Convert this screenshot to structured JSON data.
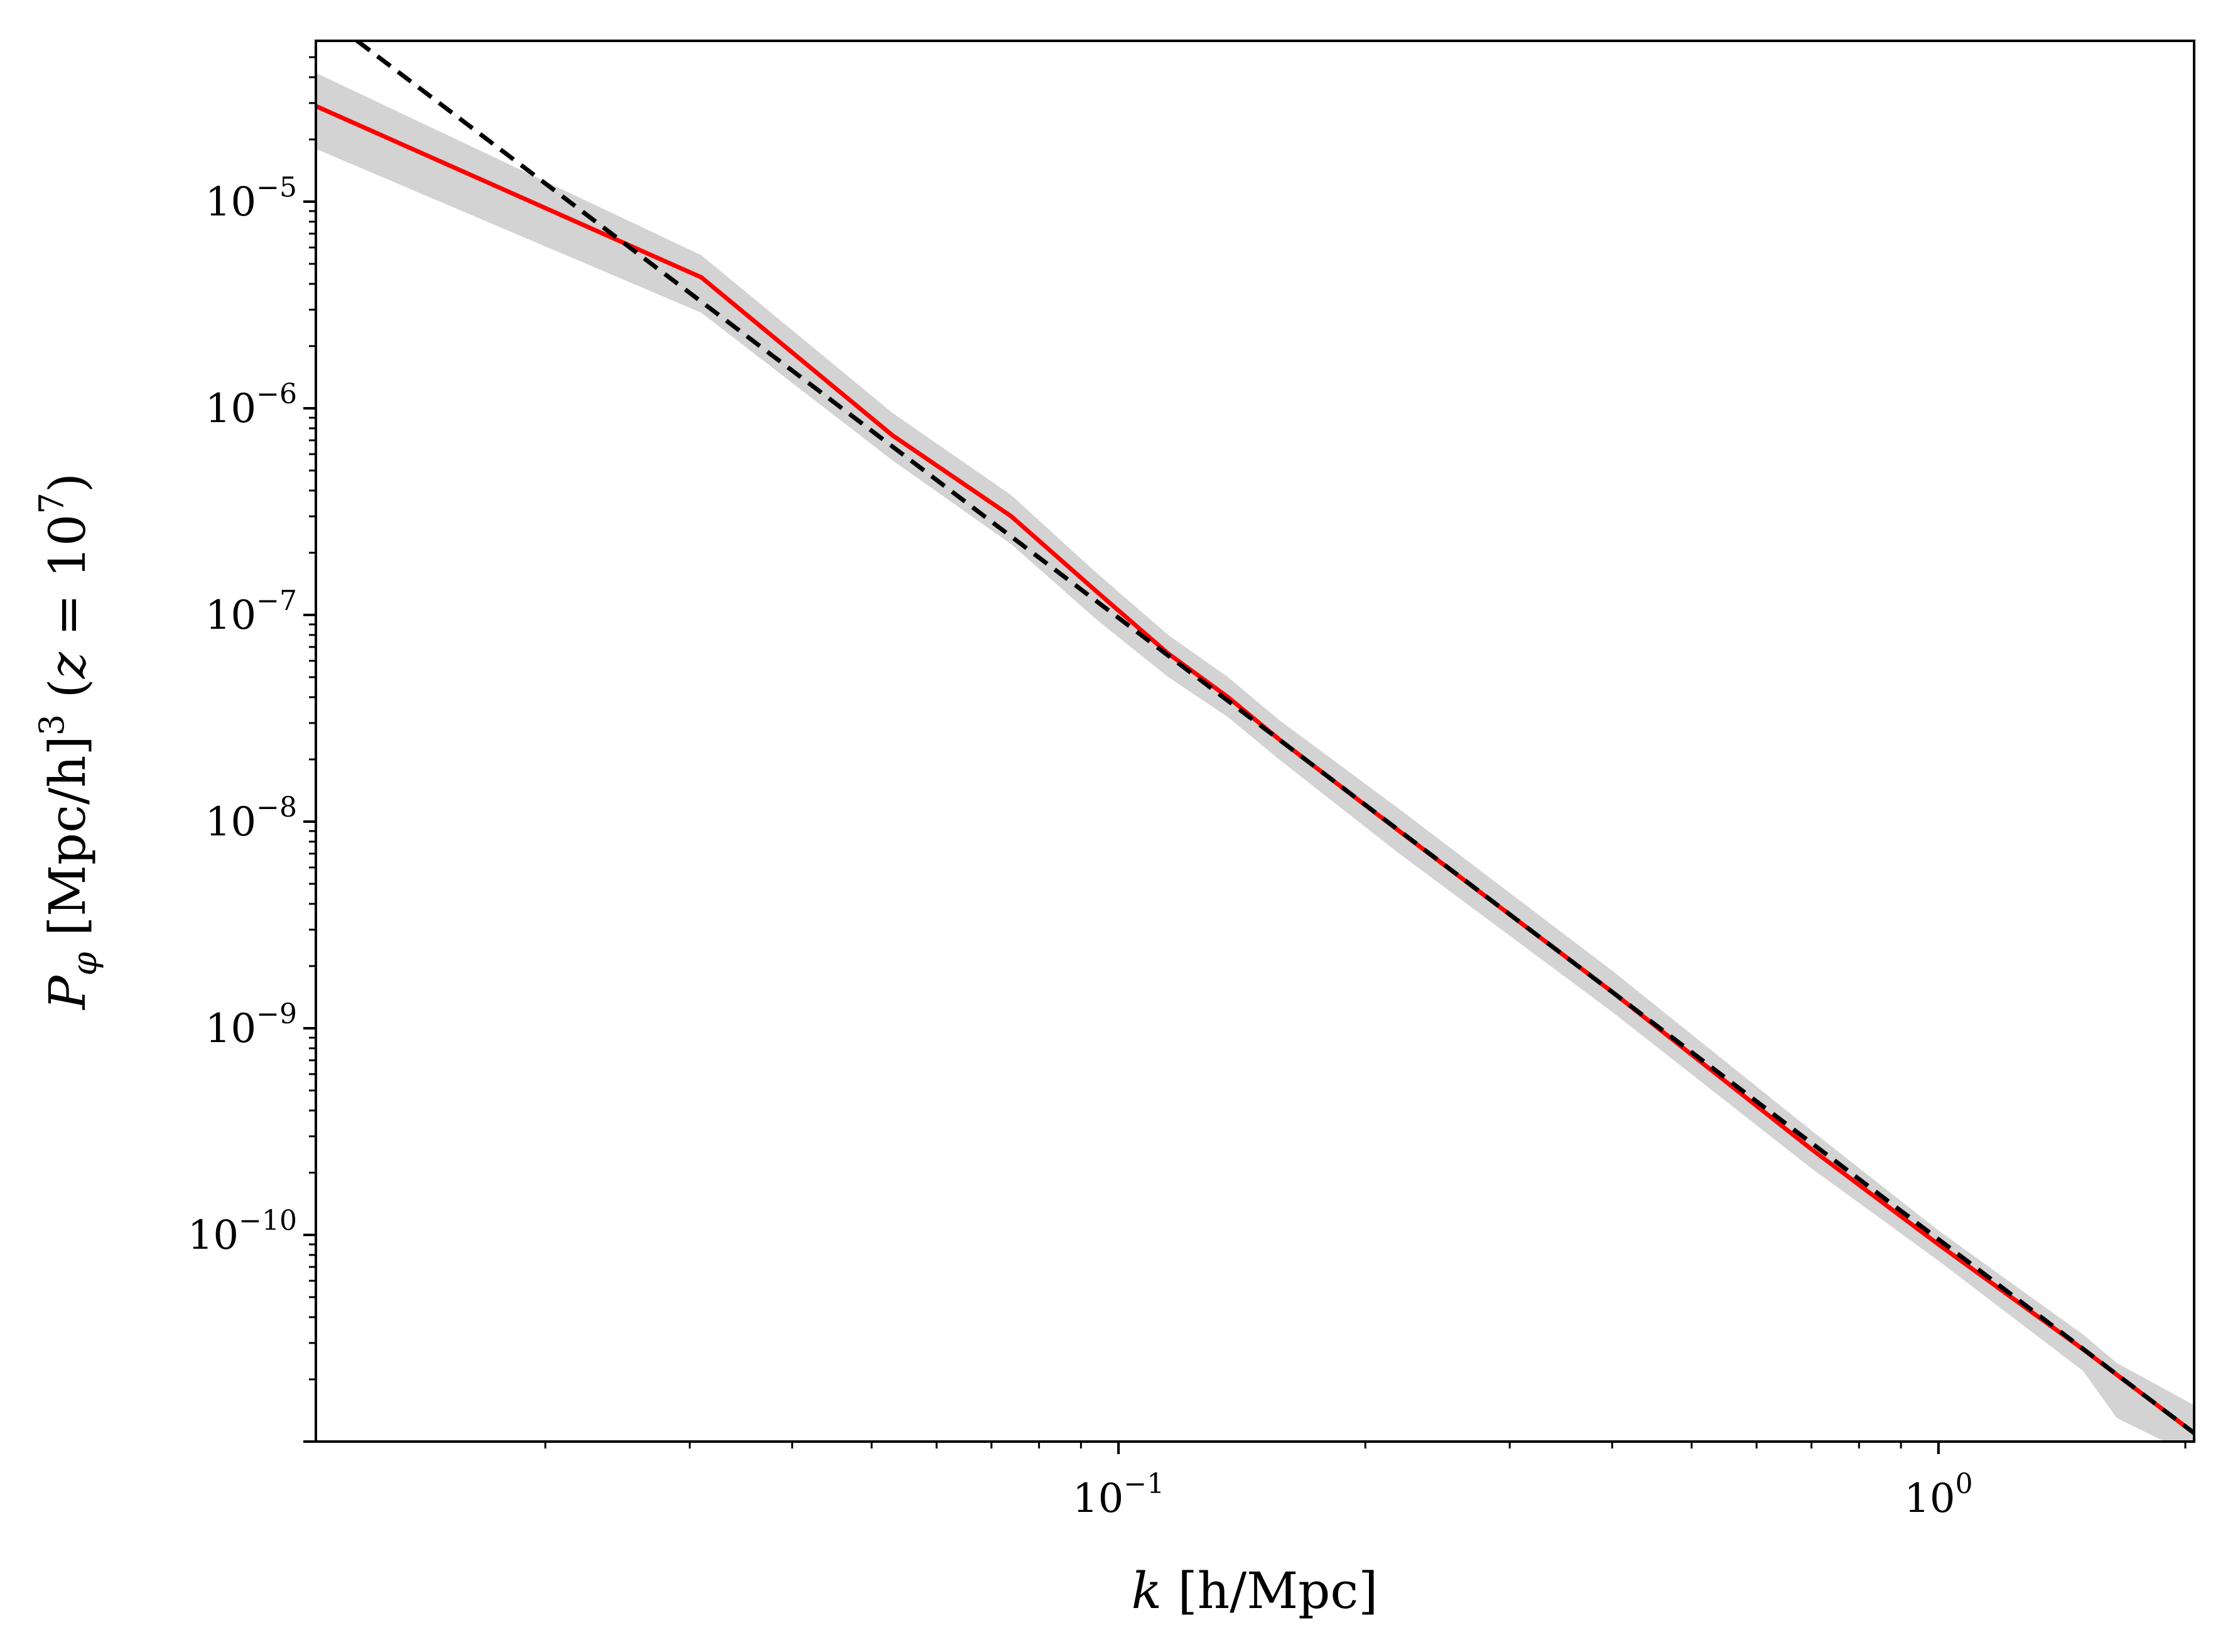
{
  "chart_data": {
    "type": "line",
    "title": "",
    "xlabel": "k [h/Mpc]",
    "ylabel": "P_φ [Mpc/h]^3 (z = 10^7)",
    "xscale": "log",
    "yscale": "log",
    "xlim": [
      0.0105,
      2.05
    ],
    "ylim": [
      1e-11,
      6e-05
    ],
    "grid": false,
    "legend": "none",
    "x_ticks": [
      {
        "value": 0.1,
        "base": "10",
        "exp": "−1"
      },
      {
        "value": 1.0,
        "base": "10",
        "exp": "0"
      }
    ],
    "y_ticks": [
      {
        "value": 1e-05,
        "base": "10",
        "exp": "−5"
      },
      {
        "value": 1e-06,
        "base": "10",
        "exp": "−6"
      },
      {
        "value": 1e-07,
        "base": "10",
        "exp": "−7"
      },
      {
        "value": 1e-08,
        "base": "10",
        "exp": "−8"
      },
      {
        "value": 1e-09,
        "base": "10",
        "exp": "−9"
      },
      {
        "value": 1e-10,
        "base": "10",
        "exp": "−10"
      }
    ],
    "series": [
      {
        "style": "solid",
        "color": "#ff0000",
        "x": [
          0.0105,
          0.031,
          0.053,
          0.074,
          0.094,
          0.115,
          0.136,
          0.157,
          0.22,
          0.4,
          0.7,
          1.0,
          1.5,
          2.05
        ],
        "y": [
          2.9e-05,
          4.3e-06,
          7.4e-07,
          3e-07,
          1.3e-07,
          6.5e-08,
          4e-08,
          2.5e-08,
          9e-09,
          1.5e-09,
          2.6e-10,
          9e-11,
          2.8e-11,
          1.1e-11
        ]
      },
      {
        "style": "dashed",
        "color": "#000000",
        "x": [
          0.0105,
          2.05
        ],
        "y": [
          8.5e-05,
          1.1e-11
        ]
      }
    ],
    "band": {
      "color": "#d3d3d3",
      "x": [
        0.0105,
        0.031,
        0.053,
        0.074,
        0.094,
        0.115,
        0.136,
        0.157,
        0.22,
        0.4,
        0.7,
        1.0,
        1.5,
        1.65,
        2.05
      ],
      "upper": [
        4.2e-05,
        5.5e-06,
        9.5e-07,
        3.8e-07,
        1.6e-07,
        8e-08,
        5e-08,
        3.1e-08,
        1.15e-08,
        1.9e-09,
        3.2e-10,
        1.05e-10,
        3.3e-11,
        2.4e-11,
        1.5e-11
      ],
      "lower": [
        1.8e-05,
        2.9e-06,
        5.6e-07,
        2.2e-07,
        9.5e-08,
        5e-08,
        3.2e-08,
        2e-08,
        7e-09,
        1.2e-09,
        2.1e-10,
        7.5e-11,
        2.2e-11,
        1.3e-11,
        8.5e-12
      ]
    }
  }
}
